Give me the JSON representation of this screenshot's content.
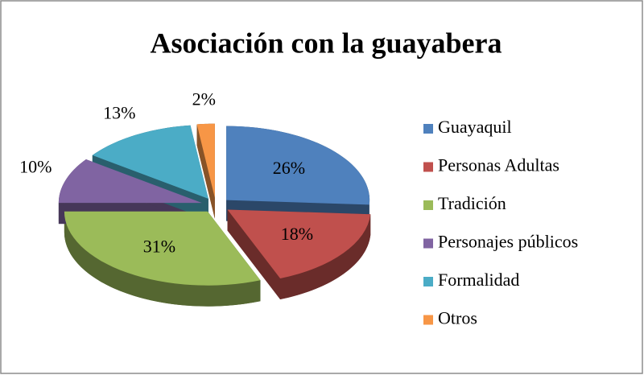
{
  "chart_data": {
    "type": "pie",
    "title": "Asociación con la guayabera",
    "categories": [
      "Guayaquil",
      "Personas Adultas",
      "Tradición",
      "Personajes públicos",
      "Formalidad",
      "Otros"
    ],
    "values": [
      26,
      18,
      31,
      10,
      13,
      2
    ],
    "value_labels": [
      "26%",
      "18%",
      "31%",
      "10%",
      "13%",
      "2%"
    ],
    "colors": [
      "#4f81bd",
      "#c0504d",
      "#9bbb59",
      "#8064a2",
      "#4bacc6",
      "#f79646"
    ],
    "legend": "right"
  }
}
